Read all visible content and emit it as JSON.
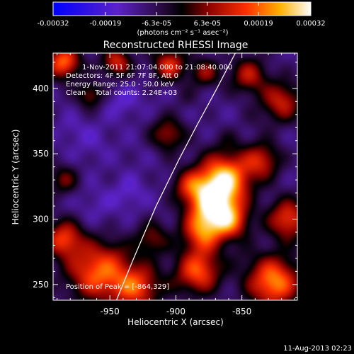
{
  "colorbar": {
    "tick_labels": [
      "-0.00032",
      "-0.00019",
      "-6.3e-05",
      "6.3e-05",
      "0.00019",
      "0.00032"
    ],
    "tick_values": [
      -0.00032,
      -0.00019,
      -6.3e-05,
      6.3e-05,
      0.00019,
      0.00032
    ],
    "range": [
      -0.00032,
      0.00032
    ],
    "units_label": "(photons cm⁻² s⁻¹ asec⁻²)"
  },
  "chart_data": {
    "type": "heatmap",
    "title": "Reconstructed RHESSI Image",
    "xlabel": "Heliocentric X (arcsec)",
    "ylabel": "Heliocentric Y (arcsec)",
    "xlim": [
      -993,
      -808
    ],
    "ylim": [
      238,
      427
    ],
    "xticks": [
      -950,
      -900,
      -850
    ],
    "xtick_labels": [
      "-950",
      "-900",
      "-850"
    ],
    "yticks": [
      250,
      300,
      350,
      400
    ],
    "ytick_labels": [
      "250",
      "300",
      "350",
      "400"
    ],
    "value_range": [
      -0.00032,
      0.00032
    ],
    "colormap": "RHESSI blue-purple-black-red-yellow-white",
    "grid": false,
    "annotations": [
      "1-Nov-2011 21:07:04.000 to 21:08:40.000",
      "Detectors: 4F 5F 6F 7F 8F, Att 0",
      "Energy Range: 25.0 - 50.0 keV",
      "Clean    Total counts: 2.24E+03"
    ],
    "peak_label": "Position of Peak = [-864,329]",
    "peak": {
      "x": -864,
      "y": 329
    },
    "limb_line": [
      [
        -945,
        238
      ],
      [
        -932,
        270
      ],
      [
        -915,
        310
      ],
      [
        -898,
        345
      ],
      [
        -884,
        372
      ],
      [
        -870,
        398
      ],
      [
        -855,
        427
      ]
    ],
    "sources": [
      {
        "x": -864,
        "y": 330,
        "r": 14,
        "v": 0.00032
      },
      {
        "x": -873,
        "y": 310,
        "r": 12,
        "v": 0.00024
      },
      {
        "x": -880,
        "y": 290,
        "r": 11,
        "v": 0.00019
      },
      {
        "x": -858,
        "y": 298,
        "r": 10,
        "v": 0.00017
      },
      {
        "x": -890,
        "y": 325,
        "r": 9,
        "v": 0.00011
      },
      {
        "x": -883,
        "y": 260,
        "r": 12,
        "v": 0.00021
      },
      {
        "x": -960,
        "y": 260,
        "r": 16,
        "v": 0.00022
      },
      {
        "x": -985,
        "y": 285,
        "r": 10,
        "v": 0.00018
      },
      {
        "x": -930,
        "y": 248,
        "r": 13,
        "v": 0.00019
      },
      {
        "x": -918,
        "y": 285,
        "r": 9,
        "v": 9e-05
      },
      {
        "x": -826,
        "y": 252,
        "r": 14,
        "v": 0.00026
      },
      {
        "x": -815,
        "y": 300,
        "r": 11,
        "v": 0.00019
      },
      {
        "x": -835,
        "y": 345,
        "r": 10,
        "v": 0.00014
      },
      {
        "x": -820,
        "y": 390,
        "r": 11,
        "v": 0.00015
      },
      {
        "x": -845,
        "y": 410,
        "r": 10,
        "v": 0.00013
      },
      {
        "x": -906,
        "y": 365,
        "r": 9,
        "v": 0.00012
      },
      {
        "x": -878,
        "y": 412,
        "r": 8,
        "v": 0.0001
      },
      {
        "x": -905,
        "y": 418,
        "r": 9,
        "v": 0.00017
      },
      {
        "x": -985,
        "y": 420,
        "r": 9,
        "v": 0.00023
      },
      {
        "x": -945,
        "y": 420,
        "r": 8,
        "v": 0.00016
      },
      {
        "x": -965,
        "y": 395,
        "r": 7,
        "v": 0.0001
      },
      {
        "x": -985,
        "y": 330,
        "r": 8,
        "v": 8e-05
      },
      {
        "x": -965,
        "y": 360,
        "r": 11,
        "v": -0.00014
      },
      {
        "x": -940,
        "y": 390,
        "r": 9,
        "v": -0.00016
      },
      {
        "x": -960,
        "y": 310,
        "r": 11,
        "v": -0.00014
      },
      {
        "x": -935,
        "y": 320,
        "r": 9,
        "v": -0.00016
      },
      {
        "x": -980,
        "y": 370,
        "r": 7,
        "v": -0.00013
      },
      {
        "x": -930,
        "y": 350,
        "r": 9,
        "v": -0.00011
      },
      {
        "x": -915,
        "y": 395,
        "r": 7,
        "v": -0.00011
      },
      {
        "x": -945,
        "y": 275,
        "r": 7,
        "v": -7e-05
      },
      {
        "x": -900,
        "y": 250,
        "r": 7,
        "v": -8e-05
      },
      {
        "x": -850,
        "y": 270,
        "r": 8,
        "v": -7e-05
      },
      {
        "x": -840,
        "y": 375,
        "r": 7,
        "v": -8e-05
      },
      {
        "x": -860,
        "y": 360,
        "r": 7,
        "v": -6e-05
      },
      {
        "x": -892,
        "y": 392,
        "r": 6,
        "v": -6e-05
      }
    ]
  },
  "footer": {
    "timestamp": "11-Aug-2013 02:23"
  }
}
